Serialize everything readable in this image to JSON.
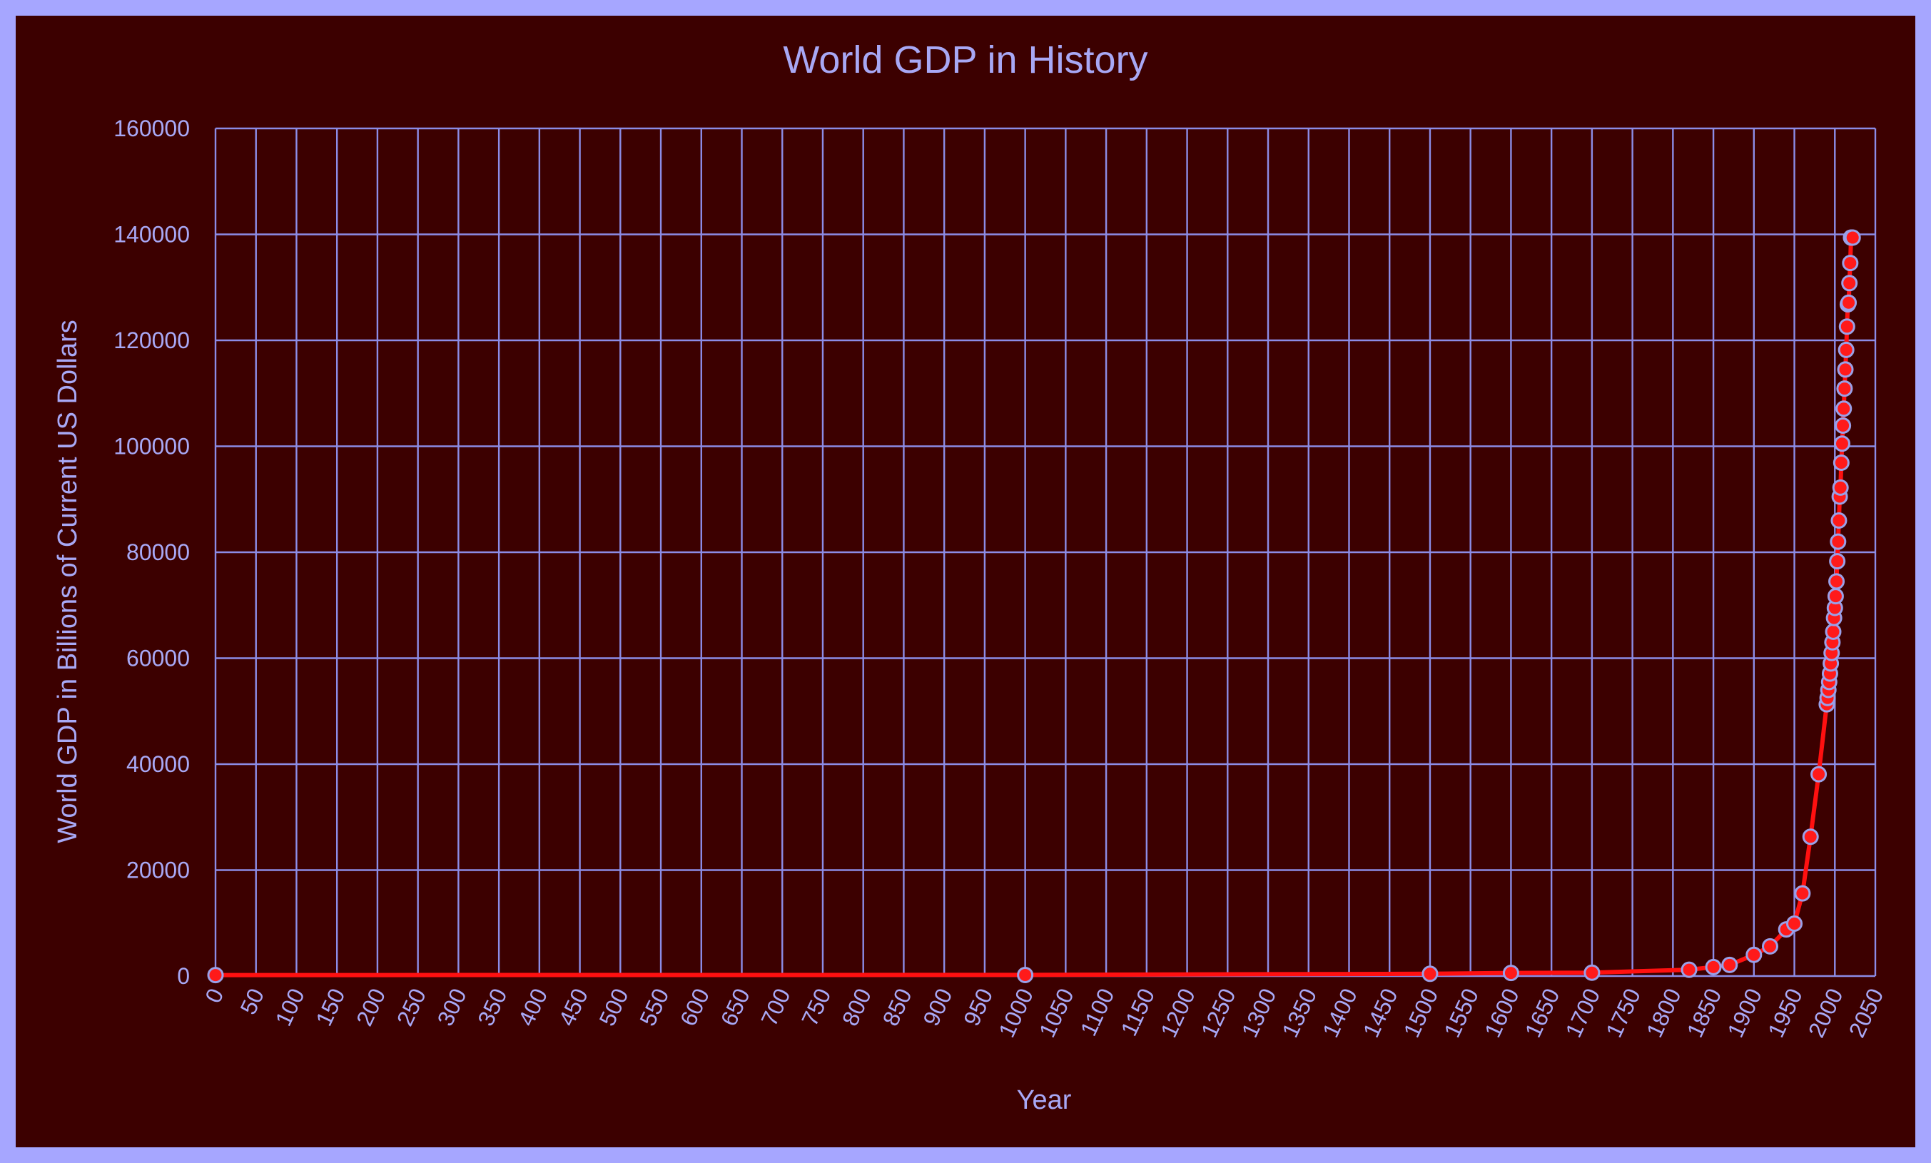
{
  "chart_data": {
    "type": "line",
    "title": "World GDP in History",
    "xlabel": "Year",
    "ylabel": "World GDP in Billions of Current US Dollars",
    "xlim": [
      0,
      2050
    ],
    "ylim": [
      0,
      160000
    ],
    "x_ticks": [
      0,
      50,
      100,
      150,
      200,
      250,
      300,
      350,
      400,
      450,
      500,
      550,
      600,
      650,
      700,
      750,
      800,
      850,
      900,
      950,
      1000,
      1050,
      1100,
      1150,
      1200,
      1250,
      1300,
      1350,
      1400,
      1450,
      1500,
      1550,
      1600,
      1650,
      1700,
      1750,
      1800,
      1850,
      1900,
      1950,
      2000,
      2050
    ],
    "y_ticks": [
      0,
      20000,
      40000,
      60000,
      80000,
      100000,
      120000,
      140000,
      160000
    ],
    "grid": true,
    "legend": "none",
    "colors": {
      "line": "#ff1010",
      "marker_fill": "#ff1a1a",
      "marker_edge": "#9aa0e8",
      "grid": "#8c8ce6",
      "text": "#a8a8f5",
      "plot_background": "#3c0000",
      "border": "#a6a6ff"
    },
    "series": [
      {
        "x": [
          0,
          1000,
          1500,
          1600,
          1700,
          1820,
          1850,
          1870,
          1900,
          1920,
          1940,
          1950,
          1960,
          1970,
          1980,
          1990,
          1991,
          1992,
          1993,
          1994,
          1995,
          1996,
          1997,
          1998,
          1999,
          2000,
          2001,
          2002,
          2003,
          2004,
          2005,
          2006,
          2007,
          2008,
          2009,
          2010,
          2011,
          2012,
          2013,
          2014,
          2015,
          2016,
          2017,
          2018,
          2019,
          2020,
          2021,
          2022
        ],
        "y": [
          190,
          210,
          430,
          590,
          640,
          1200,
          1700,
          2100,
          4000,
          5600,
          8800,
          9900,
          15600,
          26300,
          38100,
          51300,
          52500,
          54000,
          55500,
          57100,
          59000,
          61000,
          63000,
          65000,
          67600,
          69500,
          71700,
          74500,
          78300,
          82000,
          86000,
          90500,
          92200,
          96900,
          100500,
          103900,
          107100,
          110900,
          114500,
          118200,
          122600,
          126800,
          127100,
          130800,
          134600,
          139400,
          139400,
          139400
        ]
      }
    ]
  }
}
